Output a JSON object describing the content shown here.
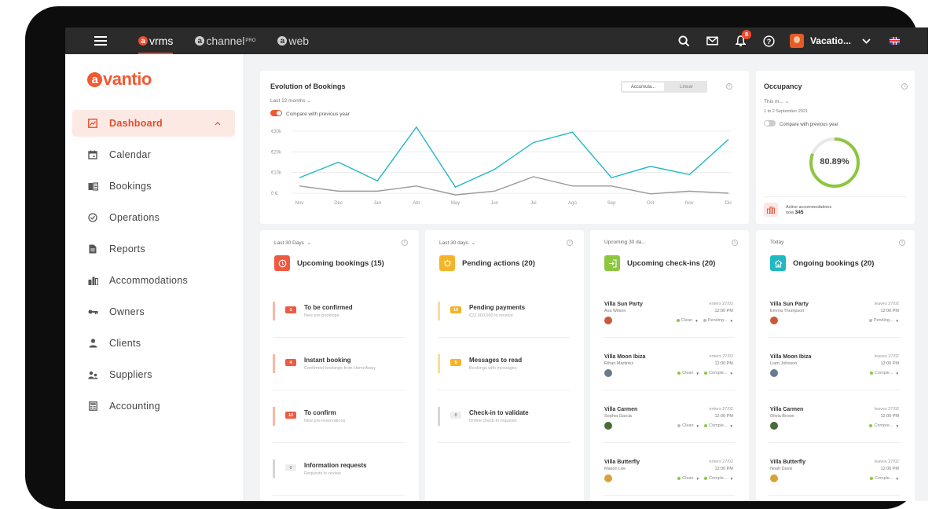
{
  "topbar": {
    "products": [
      {
        "letter": "a",
        "name": "vrms"
      },
      {
        "letter": "a",
        "name": "channel",
        "sup": "PRO"
      },
      {
        "letter": "a",
        "name": "web"
      }
    ],
    "notification_count": "8",
    "user_name": "Vacatio...",
    "icons": [
      "menu-icon",
      "search-icon",
      "mail-icon",
      "bell-icon",
      "help-icon",
      "chevron-down-icon",
      "uk-flag-icon"
    ]
  },
  "sidebar": {
    "logo_letter": "a",
    "logo_text": "vantio",
    "items": [
      {
        "label": "Dashboard",
        "icon": "chart-icon"
      },
      {
        "label": "Calendar",
        "icon": "calendar-icon"
      },
      {
        "label": "Bookings",
        "icon": "book-icon"
      },
      {
        "label": "Operations",
        "icon": "check-circle-icon"
      },
      {
        "label": "Reports",
        "icon": "document-icon"
      },
      {
        "label": "Accommodations",
        "icon": "buildings-icon"
      },
      {
        "label": "Owners",
        "icon": "key-icon"
      },
      {
        "label": "Clients",
        "icon": "person-icon"
      },
      {
        "label": "Suppliers",
        "icon": "people-icon"
      },
      {
        "label": "Accounting",
        "icon": "calculator-icon"
      }
    ]
  },
  "bookings_chart": {
    "title": "Evolution of Bookings",
    "period": "Last 12 months",
    "compare_label": "Compare with previous year",
    "toggle_options": [
      "Accumula...",
      "Linear"
    ],
    "colors": {
      "current": "#1fb8c3",
      "previous": "#9a9a9a"
    }
  },
  "chart_data": {
    "type": "line",
    "categories": [
      "Nov",
      "Dec",
      "Jan",
      "Abr",
      "May",
      "Jun",
      "Jul",
      "Ago",
      "Sep",
      "Oct",
      "Nov",
      "Dic"
    ],
    "yticks": [
      "€30k",
      "€20k",
      "€10k",
      "0 €"
    ],
    "ylim": [
      0,
      30000
    ],
    "series": [
      {
        "values": [
          7500,
          15000,
          6000,
          32000,
          3000,
          11500,
          24500,
          29500,
          7500,
          13000,
          9000,
          26000
        ]
      },
      {
        "values": [
          3500,
          1000,
          1000,
          3500,
          -800,
          1000,
          8000,
          3500,
          3500,
          -300,
          1000,
          0
        ]
      }
    ]
  },
  "occupancy": {
    "title": "Occupancy",
    "period": "This m...",
    "date_range": "1 to 2 September 2021",
    "compare_label": "Compare with previous year",
    "value": "80.89%",
    "fraction": 0.8089,
    "active_label": "Active accommodations",
    "active_now": "now",
    "active_count": "345"
  },
  "panels": {
    "upcoming": {
      "period": "Last 30 Days",
      "title": "Upcoming bookings (15)",
      "tasks": [
        {
          "count": "1",
          "title": "To be confirmed",
          "sub": "New pre-bookings"
        },
        {
          "count": "4",
          "title": "Instant booking",
          "sub": "Confirmed bookings from HomeAway"
        },
        {
          "count": "10",
          "title": "To confirm",
          "sub": "New pre-reservations"
        },
        {
          "count": "0",
          "title": "Information requests",
          "sub": "Requests to review"
        }
      ]
    },
    "pending": {
      "period": "Last 30 days",
      "title": "Pending actions (20)",
      "tasks": [
        {
          "count": "10",
          "title": "Pending payments",
          "sub": "€22,000,000 to receive"
        },
        {
          "count": "5",
          "title": "Messages to read",
          "sub": "Bookings with messages"
        },
        {
          "count": "0",
          "title": "Check-in to validate",
          "sub": "Online check-in requests"
        }
      ]
    },
    "checkins": {
      "period": "Upcoming 30 da...",
      "title": "Upcoming check-ins (20)",
      "rows": [
        {
          "villa": "Villa Sun Party",
          "guest": "Ava Wilson",
          "date": "enters 27/02",
          "time": "12:00 PM",
          "tags": [
            "Clean",
            "Pending..."
          ],
          "tag_colors": [
            "#8dc63f",
            "#bbbbbb"
          ]
        },
        {
          "villa": "Villa Moon Ibiza",
          "guest": "Ethan Martinez",
          "date": "enters 27/02",
          "time": "12:00 PM",
          "tags": [
            "Clean",
            "Comple..."
          ],
          "tag_colors": [
            "#8dc63f",
            "#8dc63f"
          ]
        },
        {
          "villa": "Villa Carmen",
          "guest": "Sophia Garcia",
          "date": "enters 27/02",
          "time": "12:00 PM",
          "tags": [
            "Clean",
            "Comple..."
          ],
          "tag_colors": [
            "#bbbbbb",
            "#8dc63f"
          ]
        },
        {
          "villa": "Villa Butterfly",
          "guest": "Mason Lee",
          "date": "enters 27/02",
          "time": "12:00 PM",
          "tags": [
            "Clean",
            "Comple..."
          ],
          "tag_colors": [
            "#8dc63f",
            "#8dc63f"
          ]
        }
      ]
    },
    "ongoing": {
      "period": "Today",
      "title": "Ongoing bookings (20)",
      "rows": [
        {
          "villa": "Villa Sun Party",
          "guest": "Emma Thompson",
          "date": "leaves 27/02",
          "time": "12:00 PM",
          "tags": [
            "Pending..."
          ],
          "tag_colors": [
            "#bbbbbb"
          ]
        },
        {
          "villa": "Villa Moon Ibiza",
          "guest": "Liam Johnson",
          "date": "leaves 27/02",
          "time": "12:00 PM",
          "tags": [
            "Comple..."
          ],
          "tag_colors": [
            "#8dc63f"
          ]
        },
        {
          "villa": "Villa Carmen",
          "guest": "Olivia Brown",
          "date": "leaves 27/02",
          "time": "12:00 PM",
          "tags": [
            "Compre..."
          ],
          "tag_colors": [
            "#8dc63f"
          ]
        },
        {
          "villa": "Villa Butterfly",
          "guest": "Noah Davis",
          "date": "leaves 27/02",
          "time": "12:00 PM",
          "tags": [
            "Comple..."
          ],
          "tag_colors": [
            "#8dc63f"
          ]
        }
      ]
    }
  },
  "colors": {
    "brand": "#ef5a33",
    "teal": "#1fb8c3",
    "green": "#8dc63f",
    "yellow": "#f5b428"
  }
}
